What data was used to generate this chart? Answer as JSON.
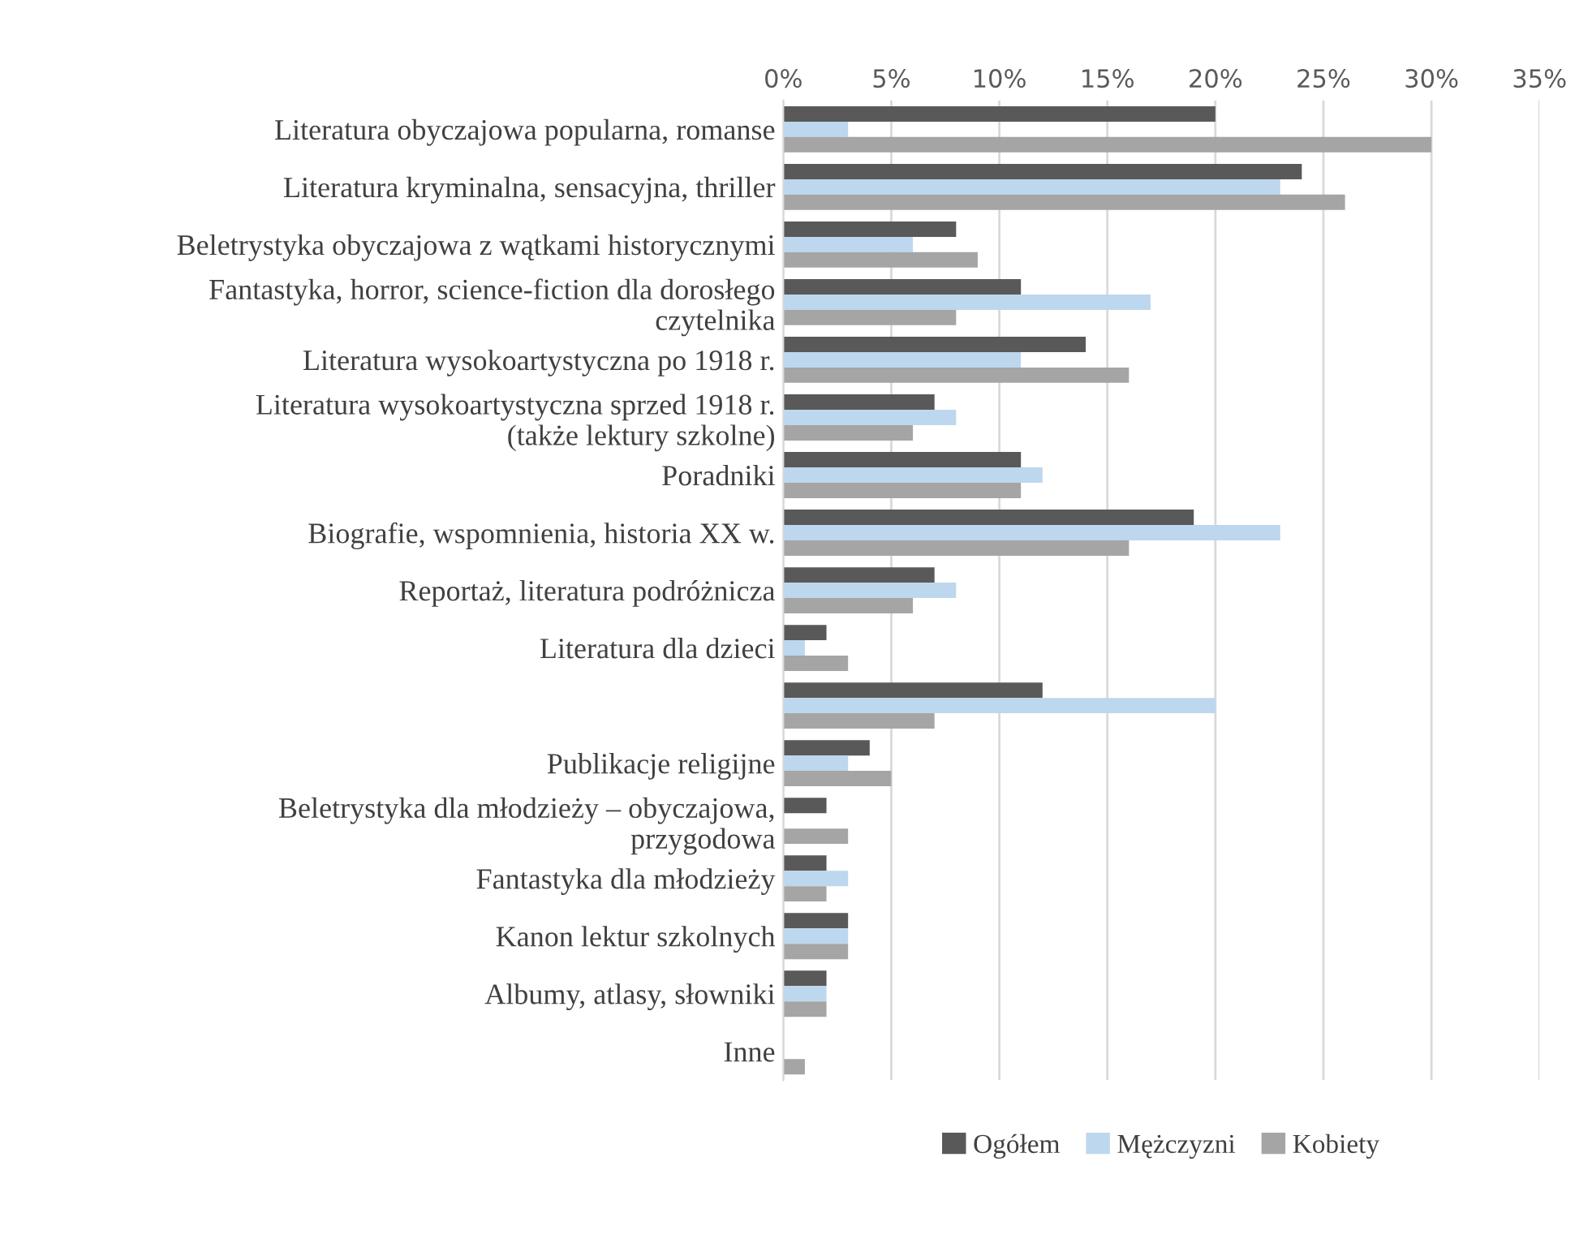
{
  "chart_data": {
    "type": "bar",
    "orientation": "horizontal",
    "categories": [
      "Literatura obyczajowa popularna, romanse",
      "Literatura kryminalna, sensacyjna, thriller",
      "Beletrystyka obyczajowa z wątkami historycznymi",
      "Fantastyka, horror, science-fiction dla dorosłego\nczytelnika",
      "Literatura wysokoartystyczna po 1918 r.",
      "Literatura wysokoartystyczna sprzed 1918 r.\n(także lektury szkolne)",
      "Poradniki",
      "Biografie, wspomnienia, historia XX w.",
      "Reportaż, literatura podróżnicza",
      "Literatura dla dzieci",
      null,
      "Publikacje religijne",
      "Beletrystyka dla młodzieży – obyczajowa,\nprzygodowa",
      "Fantastyka dla młodzieży",
      "Kanon lektur szkolnych",
      "Albumy, atlasy, słowniki",
      "Inne"
    ],
    "series": [
      {
        "name": "Ogółem",
        "color": "#595959",
        "values": [
          20,
          24,
          8,
          11,
          14,
          7,
          11,
          19,
          7,
          2,
          12,
          4,
          2,
          2,
          3,
          2,
          null
        ]
      },
      {
        "name": "Mężczyzni",
        "color": "#bdd7ee",
        "values": [
          3,
          23,
          6,
          17,
          11,
          8,
          12,
          23,
          8,
          1,
          20,
          3,
          null,
          3,
          3,
          2,
          null
        ]
      },
      {
        "name": "Kobiety",
        "color": "#a5a5a5",
        "values": [
          30,
          26,
          9,
          8,
          16,
          6,
          11,
          16,
          6,
          3,
          7,
          5,
          3,
          2,
          3,
          2,
          1
        ]
      }
    ],
    "xlim": [
      0,
      35
    ],
    "xticks": [
      {
        "value": 0,
        "label": "0%"
      },
      {
        "value": 5,
        "label": "5%"
      },
      {
        "value": 10,
        "label": "10%"
      },
      {
        "value": 15,
        "label": "15%"
      },
      {
        "value": 20,
        "label": "20%"
      },
      {
        "value": 25,
        "label": "25%"
      },
      {
        "value": 30,
        "label": "30%"
      },
      {
        "value": 35,
        "label": "35%"
      }
    ],
    "grid": "x",
    "legend": "bottom"
  }
}
